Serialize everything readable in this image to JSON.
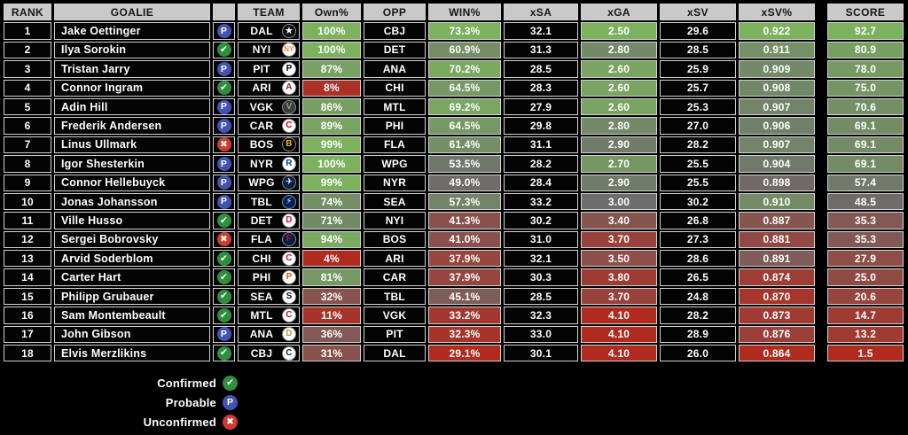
{
  "chart_data": {
    "type": "table",
    "columns": [
      "RANK",
      "GOALIE",
      "",
      "TEAM",
      "Own%",
      "OPP",
      "WIN%",
      "xSA",
      "xGA",
      "xSV",
      "xSV%",
      "SCORE"
    ],
    "rows": [
      {
        "rank": "1",
        "goalie": "Jake Oettinger",
        "status": "probable",
        "team": "DAL",
        "own": "100%",
        "opp": "CBJ",
        "win": "73.3%",
        "xsa": "32.1",
        "xga": "2.50",
        "xsv": "29.6",
        "xsv_pct": "0.922",
        "score": "92.7"
      },
      {
        "rank": "2",
        "goalie": "Ilya Sorokin",
        "status": "confirmed",
        "team": "NYI",
        "own": "100%",
        "opp": "DET",
        "win": "60.9%",
        "xsa": "31.3",
        "xga": "2.80",
        "xsv": "28.5",
        "xsv_pct": "0.911",
        "score": "80.9"
      },
      {
        "rank": "3",
        "goalie": "Tristan Jarry",
        "status": "probable",
        "team": "PIT",
        "own": "87%",
        "opp": "ANA",
        "win": "70.2%",
        "xsa": "28.5",
        "xga": "2.60",
        "xsv": "25.9",
        "xsv_pct": "0.909",
        "score": "78.0"
      },
      {
        "rank": "4",
        "goalie": "Connor Ingram",
        "status": "confirmed",
        "team": "ARI",
        "own": "8%",
        "opp": "CHI",
        "win": "64.5%",
        "xsa": "28.3",
        "xga": "2.60",
        "xsv": "25.7",
        "xsv_pct": "0.908",
        "score": "75.0"
      },
      {
        "rank": "5",
        "goalie": "Adin Hill",
        "status": "probable",
        "team": "VGK",
        "own": "86%",
        "opp": "MTL",
        "win": "69.2%",
        "xsa": "27.9",
        "xga": "2.60",
        "xsv": "25.3",
        "xsv_pct": "0.907",
        "score": "70.6"
      },
      {
        "rank": "6",
        "goalie": "Frederik Andersen",
        "status": "probable",
        "team": "CAR",
        "own": "89%",
        "opp": "PHI",
        "win": "64.5%",
        "xsa": "29.8",
        "xga": "2.80",
        "xsv": "27.0",
        "xsv_pct": "0.906",
        "score": "69.1"
      },
      {
        "rank": "7",
        "goalie": "Linus Ullmark",
        "status": "unconfirmed",
        "team": "BOS",
        "own": "99%",
        "opp": "FLA",
        "win": "61.4%",
        "xsa": "31.1",
        "xga": "2.90",
        "xsv": "28.2",
        "xsv_pct": "0.907",
        "score": "69.1"
      },
      {
        "rank": "8",
        "goalie": "Igor Shesterkin",
        "status": "probable",
        "team": "NYR",
        "own": "100%",
        "opp": "WPG",
        "win": "53.5%",
        "xsa": "28.2",
        "xga": "2.70",
        "xsv": "25.5",
        "xsv_pct": "0.904",
        "score": "69.1"
      },
      {
        "rank": "9",
        "goalie": "Connor Hellebuyck",
        "status": "probable",
        "team": "WPG",
        "own": "99%",
        "opp": "NYR",
        "win": "49.0%",
        "xsa": "28.4",
        "xga": "2.90",
        "xsv": "25.5",
        "xsv_pct": "0.898",
        "score": "57.4"
      },
      {
        "rank": "10",
        "goalie": "Jonas Johansson",
        "status": "probable",
        "team": "TBL",
        "own": "74%",
        "opp": "SEA",
        "win": "57.3%",
        "xsa": "33.2",
        "xga": "3.00",
        "xsv": "30.2",
        "xsv_pct": "0.910",
        "score": "48.5"
      },
      {
        "rank": "11",
        "goalie": "Ville Husso",
        "status": "confirmed",
        "team": "DET",
        "own": "71%",
        "opp": "NYI",
        "win": "41.3%",
        "xsa": "30.2",
        "xga": "3.40",
        "xsv": "26.8",
        "xsv_pct": "0.887",
        "score": "35.3"
      },
      {
        "rank": "12",
        "goalie": "Sergei Bobrovsky",
        "status": "unconfirmed",
        "team": "FLA",
        "own": "94%",
        "opp": "BOS",
        "win": "41.0%",
        "xsa": "31.0",
        "xga": "3.70",
        "xsv": "27.3",
        "xsv_pct": "0.881",
        "score": "35.3"
      },
      {
        "rank": "13",
        "goalie": "Arvid Soderblom",
        "status": "confirmed",
        "team": "CHI",
        "own": "4%",
        "opp": "ARI",
        "win": "37.9%",
        "xsa": "32.1",
        "xga": "3.50",
        "xsv": "28.6",
        "xsv_pct": "0.891",
        "score": "27.9"
      },
      {
        "rank": "14",
        "goalie": "Carter Hart",
        "status": "confirmed",
        "team": "PHI",
        "own": "81%",
        "opp": "CAR",
        "win": "37.9%",
        "xsa": "30.3",
        "xga": "3.80",
        "xsv": "26.5",
        "xsv_pct": "0.874",
        "score": "25.0"
      },
      {
        "rank": "15",
        "goalie": "Philipp Grubauer",
        "status": "confirmed",
        "team": "SEA",
        "own": "32%",
        "opp": "TBL",
        "win": "45.1%",
        "xsa": "28.5",
        "xga": "3.70",
        "xsv": "24.8",
        "xsv_pct": "0.870",
        "score": "20.6"
      },
      {
        "rank": "16",
        "goalie": "Sam Montembeault",
        "status": "confirmed",
        "team": "MTL",
        "own": "11%",
        "opp": "VGK",
        "win": "33.2%",
        "xsa": "32.3",
        "xga": "4.10",
        "xsv": "28.2",
        "xsv_pct": "0.873",
        "score": "14.7"
      },
      {
        "rank": "17",
        "goalie": "John Gibson",
        "status": "probable",
        "team": "ANA",
        "own": "36%",
        "opp": "PIT",
        "win": "32.3%",
        "xsa": "33.0",
        "xga": "4.10",
        "xsv": "28.9",
        "xsv_pct": "0.876",
        "score": "13.2"
      },
      {
        "rank": "18",
        "goalie": "Elvis Merzlikins",
        "status": "confirmed",
        "team": "CBJ",
        "own": "31%",
        "opp": "DAL",
        "win": "29.1%",
        "xsa": "30.1",
        "xga": "4.10",
        "xsv": "26.0",
        "xsv_pct": "0.864",
        "score": "1.5"
      }
    ],
    "layout": {
      "grid": "cell-borders",
      "header_bg": "#c9c9c9",
      "row_bg": "#040404",
      "heat_columns": [
        "own",
        "win",
        "xga",
        "xsv_pct",
        "score"
      ]
    }
  },
  "legend": [
    {
      "label": "Confirmed",
      "status": "confirmed",
      "glyph": "✔"
    },
    {
      "label": "Probable",
      "status": "probable",
      "glyph": "P"
    },
    {
      "label": "Unconfirmed",
      "status": "unconfirmed",
      "glyph": "✖"
    }
  ],
  "status_colors": {
    "confirmed": "#2e8f3e",
    "probable": "#4353b5",
    "unconfirmed": "#d13a2e"
  },
  "status_glyphs": {
    "confirmed": "✔",
    "probable": "P",
    "unconfirmed": "✖"
  },
  "heatmap": {
    "palette": {
      "red": "#b12a1e",
      "gray": "#6d6d6d",
      "green": "#7cb25e"
    },
    "scales": {
      "own": {
        "min": 4,
        "mid": 50,
        "max": 100,
        "higher_better": true
      },
      "win": {
        "min": 29.1,
        "mid": 50,
        "max": 73.3,
        "higher_better": true
      },
      "xga": {
        "min": 2.5,
        "mid": 3.0,
        "max": 4.1,
        "higher_better": false
      },
      "xsv_pct": {
        "min": 0.864,
        "mid": 0.9,
        "max": 0.922,
        "higher_better": true
      },
      "score": {
        "min": 1.5,
        "mid": 50,
        "max": 92.7,
        "higher_better": true
      }
    }
  },
  "team_logos": {
    "DAL": {
      "bg": "#111111",
      "fg": "#ffffff",
      "glyph": "★",
      "size": 11
    },
    "NYI": {
      "bg": "#ffffff",
      "fg": "#f47d30",
      "glyph": "NY",
      "size": 8
    },
    "PIT": {
      "bg": "#ffffff",
      "fg": "#000000",
      "glyph": "P",
      "size": 10
    },
    "ARI": {
      "bg": "#ffffff",
      "fg": "#8c2633",
      "glyph": "A",
      "size": 10
    },
    "VGK": {
      "bg": "#333f42",
      "fg": "#b4975a",
      "glyph": "V",
      "size": 10
    },
    "CAR": {
      "bg": "#ffffff",
      "fg": "#cc0000",
      "glyph": "C",
      "size": 10
    },
    "BOS": {
      "bg": "#000000",
      "fg": "#fcb514",
      "glyph": "B",
      "size": 10
    },
    "NYR": {
      "bg": "#ffffff",
      "fg": "#0038a8",
      "glyph": "R",
      "size": 10
    },
    "WPG": {
      "bg": "#041e42",
      "fg": "#ffffff",
      "glyph": "✈",
      "size": 10
    },
    "TBL": {
      "bg": "#00205b",
      "fg": "#ffffff",
      "glyph": "⚡",
      "size": 10
    },
    "DET": {
      "bg": "#ffffff",
      "fg": "#ce1126",
      "glyph": "D",
      "size": 10
    },
    "FLA": {
      "bg": "#041e42",
      "fg": "#c8102e",
      "glyph": "F",
      "size": 10
    },
    "CHI": {
      "bg": "#ffffff",
      "fg": "#cf0a2c",
      "glyph": "C",
      "size": 10
    },
    "PHI": {
      "bg": "#ffffff",
      "fg": "#f74902",
      "glyph": "P",
      "size": 10
    },
    "SEA": {
      "bg": "#ffffff",
      "fg": "#001628",
      "glyph": "S",
      "size": 10
    },
    "MTL": {
      "bg": "#ffffff",
      "fg": "#af1e2d",
      "glyph": "C",
      "size": 10
    },
    "ANA": {
      "bg": "#ffffff",
      "fg": "#b9975b",
      "glyph": "D",
      "size": 10
    },
    "CBJ": {
      "bg": "#ffffff",
      "fg": "#002654",
      "glyph": "C",
      "size": 10
    }
  }
}
